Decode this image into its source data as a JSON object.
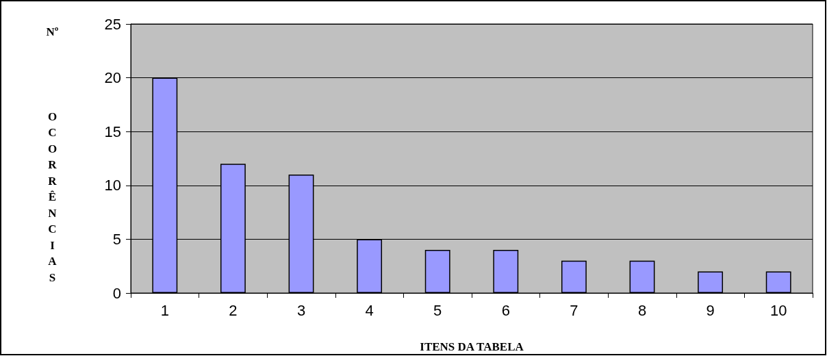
{
  "chart_data": {
    "type": "bar",
    "xlabel": "ITENS DA TABELA",
    "ylabel": "Nº OCORRÊNCIAS",
    "categories": [
      "1",
      "2",
      "3",
      "4",
      "5",
      "6",
      "7",
      "8",
      "9",
      "10"
    ],
    "values": [
      20,
      12,
      11,
      5,
      4,
      4,
      3,
      3,
      2,
      2
    ],
    "color": "#9999ff",
    "ylim": [
      0,
      25
    ],
    "yticks": [
      0,
      5,
      10,
      15,
      20,
      25
    ],
    "grid": "y"
  }
}
